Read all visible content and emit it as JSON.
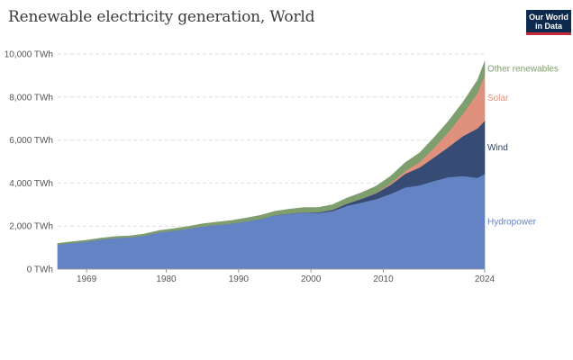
{
  "header": {
    "title": "Renewable electricity generation, World",
    "logo_line1": "Our World",
    "logo_line2": "in Data"
  },
  "chart_data": {
    "type": "area",
    "stacked": true,
    "title": "Renewable electricity generation, World",
    "xlabel": "",
    "ylabel": "",
    "xlim": [
      1965,
      2024
    ],
    "ylim": [
      0,
      10000
    ],
    "y_ticks": [
      {
        "value": 0,
        "label": "0 TWh"
      },
      {
        "value": 2000,
        "label": "2,000 TWh"
      },
      {
        "value": 4000,
        "label": "4,000 TWh"
      },
      {
        "value": 6000,
        "label": "6,000 TWh"
      },
      {
        "value": 8000,
        "label": "8,000 TWh"
      },
      {
        "value": 10000,
        "label": "10,000 TWh"
      }
    ],
    "x_ticks": [
      {
        "value": 1969,
        "label": "1969"
      },
      {
        "value": 1980,
        "label": "1980"
      },
      {
        "value": 1990,
        "label": "1990"
      },
      {
        "value": 2000,
        "label": "2000"
      },
      {
        "value": 2010,
        "label": "2010"
      },
      {
        "value": 2024,
        "label": "2024"
      }
    ],
    "grid": "horizontal dashed",
    "legend": "right, inline labels",
    "x": [
      1965,
      1967,
      1969,
      1971,
      1973,
      1975,
      1977,
      1979,
      1981,
      1983,
      1985,
      1987,
      1989,
      1991,
      1993,
      1995,
      1997,
      1999,
      2001,
      2003,
      2005,
      2007,
      2009,
      2011,
      2013,
      2015,
      2017,
      2019,
      2021,
      2023,
      2024
    ],
    "series": [
      {
        "name": "Hydropower",
        "color": "#6383c4",
        "values": [
          1150,
          1220,
          1290,
          1380,
          1450,
          1480,
          1560,
          1710,
          1790,
          1880,
          1990,
          2060,
          2120,
          2220,
          2330,
          2500,
          2580,
          2630,
          2610,
          2700,
          2950,
          3100,
          3260,
          3500,
          3800,
          3900,
          4100,
          4280,
          4330,
          4250,
          4420
        ]
      },
      {
        "name": "Wind",
        "color": "#374c74",
        "values": [
          0,
          0,
          0,
          0,
          0,
          0,
          0,
          0,
          0,
          0,
          0,
          0,
          0,
          3,
          5,
          8,
          10,
          20,
          35,
          60,
          100,
          170,
          270,
          420,
          630,
          830,
          1100,
          1400,
          1860,
          2300,
          2480
        ]
      },
      {
        "name": "Solar",
        "color": "#e0917e",
        "values": [
          0,
          0,
          0,
          0,
          0,
          0,
          0,
          0,
          0,
          0,
          0,
          0,
          0,
          0,
          0,
          0,
          0,
          0,
          0,
          0,
          3,
          6,
          20,
          62,
          130,
          250,
          450,
          700,
          1030,
          1640,
          2130
        ]
      },
      {
        "name": "Other renewables",
        "color": "#7e9e6e",
        "values": [
          45,
          50,
          55,
          60,
          65,
          70,
          75,
          80,
          90,
          100,
          115,
          125,
          140,
          150,
          165,
          180,
          195,
          210,
          220,
          235,
          255,
          280,
          305,
          340,
          380,
          420,
          460,
          500,
          540,
          590,
          620
        ]
      }
    ]
  },
  "colors": {
    "axis_text": "#555555",
    "grid": "#dddddd",
    "logo_bg": "#0b2a4e",
    "logo_bar": "#c62b3c"
  }
}
